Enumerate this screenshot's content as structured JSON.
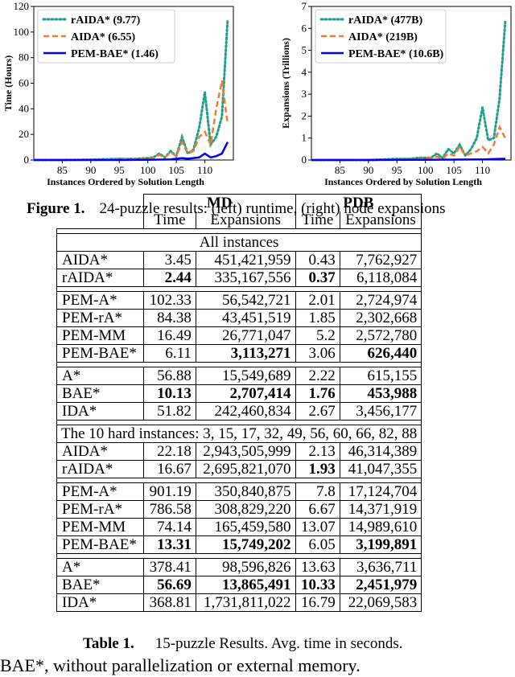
{
  "figure": {
    "label": "Figure 1.",
    "caption": "24-puzzle results: (left) runtime, (right) node expansions"
  },
  "chart_data": [
    {
      "type": "line",
      "title": "",
      "xlabel": "Instances Ordered by Solution Length",
      "ylabel": "Time (Hours)",
      "xlim": [
        80,
        115
      ],
      "ylim": [
        0,
        120
      ],
      "xticks": [
        "85",
        "90",
        "95",
        "100",
        "105",
        "110"
      ],
      "yticks": [
        "0",
        "20",
        "40",
        "60",
        "80",
        "100",
        "120"
      ],
      "legend_position": "top-left",
      "series": [
        {
          "name": "rAIDA* (9.77)",
          "style": "dotted",
          "color": "#1f9e89",
          "x": [
            80,
            85,
            90,
            94,
            95,
            96,
            98,
            100,
            101,
            102,
            103,
            104,
            105,
            106,
            107,
            108,
            109,
            110,
            111,
            112,
            113,
            114
          ],
          "y": [
            0,
            0,
            0.3,
            0.8,
            1,
            0.8,
            1,
            1.5,
            2,
            5,
            2,
            7,
            3,
            18,
            5,
            8,
            25,
            53,
            12,
            18,
            34,
            110
          ]
        },
        {
          "name": "AIDA* (6.55)",
          "style": "dashed",
          "color": "#f07d2e",
          "x": [
            80,
            85,
            90,
            95,
            98,
            100,
            101,
            102,
            103,
            104,
            105,
            106,
            107,
            108,
            109,
            110,
            111,
            112,
            113,
            114
          ],
          "y": [
            0,
            0,
            0.2,
            0.6,
            0.8,
            1,
            1.5,
            4,
            2,
            6,
            3,
            14,
            5,
            7,
            18,
            22,
            12,
            40,
            62,
            28
          ]
        },
        {
          "name": "PEM-BAE* (1.46)",
          "style": "solid",
          "color": "#0000ee",
          "x": [
            80,
            85,
            90,
            95,
            100,
            104,
            105,
            106,
            107,
            108,
            109,
            110,
            111,
            112,
            113,
            114
          ],
          "y": [
            0,
            0,
            0,
            0,
            0.2,
            0.5,
            1,
            1.5,
            1,
            1.5,
            2,
            5,
            2,
            3,
            5,
            14
          ]
        }
      ]
    },
    {
      "type": "line",
      "title": "",
      "xlabel": "Instances Ordered by Solution Length",
      "ylabel": "Expansions (Trillions)",
      "xlim": [
        80,
        115
      ],
      "ylim": [
        0,
        7
      ],
      "xticks": [
        "85",
        "90",
        "95",
        "100",
        "105",
        "110"
      ],
      "yticks": [
        "0",
        "1",
        "2",
        "3",
        "4",
        "5",
        "6",
        "7"
      ],
      "legend_position": "top-left",
      "series": [
        {
          "name": "rAIDA* (477B)",
          "style": "dotted",
          "color": "#1f9e89",
          "x": [
            80,
            85,
            90,
            95,
            97,
            99,
            101,
            102,
            103,
            104,
            105,
            106,
            107,
            108,
            109,
            110,
            111,
            112,
            113,
            114
          ],
          "y": [
            0,
            0,
            0,
            0.05,
            0.05,
            0.1,
            0.1,
            0.3,
            0.1,
            0.5,
            0.3,
            0.7,
            0.2,
            0.5,
            1,
            2.4,
            0.9,
            1,
            2.8,
            6.3
          ]
        },
        {
          "name": "AIDA* (219B)",
          "style": "dashed",
          "color": "#f07d2e",
          "x": [
            80,
            85,
            90,
            95,
            100,
            102,
            103,
            104,
            105,
            106,
            107,
            108,
            109,
            110,
            111,
            112,
            113,
            114
          ],
          "y": [
            0,
            0,
            0,
            0.02,
            0.05,
            0.15,
            0.05,
            0.3,
            0.2,
            0.6,
            0.2,
            0.3,
            0.4,
            0.6,
            0.3,
            0.7,
            1.5,
            1
          ]
        },
        {
          "name": "PEM-BAE* (10.6B)",
          "style": "solid",
          "color": "#0000ee",
          "x": [
            80,
            90,
            100,
            105,
            110,
            114
          ],
          "y": [
            0,
            0,
            0.01,
            0.02,
            0.03,
            0.06
          ]
        }
      ]
    }
  ],
  "table": {
    "group_headers": [
      "MD",
      "PDB"
    ],
    "col_headers": [
      "Time",
      "Expansions",
      "Time",
      "Expansions"
    ],
    "section1_title": "All instances",
    "section2_title": "The 10 hard instances: 3, 15, 17, 32, 49, 56, 60, 66, 82, 88",
    "section1": [
      [
        {
          "name": "AIDA*",
          "v": [
            "3.45",
            "451,421,959",
            "0.43",
            "7,762,927"
          ],
          "bold": []
        },
        {
          "name": "rAIDA*",
          "v": [
            "2.44",
            "335,167,556",
            "0.37",
            "6,118,084"
          ],
          "bold": [
            0,
            2
          ]
        }
      ],
      [
        {
          "name": "PEM-A*",
          "v": [
            "102.33",
            "56,542,721",
            "2.01",
            "2,724,974"
          ],
          "bold": []
        },
        {
          "name": "PEM-rA*",
          "v": [
            "84.38",
            "43,451,519",
            "1.85",
            "2,302,668"
          ],
          "bold": []
        },
        {
          "name": "PEM-MM",
          "v": [
            "16.49",
            "26,771,047",
            "5.2",
            "2,572,780"
          ],
          "bold": []
        },
        {
          "name": "PEM-BAE*",
          "v": [
            "6.11",
            "3,113,271",
            "3.06",
            "626,440"
          ],
          "bold": [
            1,
            3
          ]
        }
      ],
      [
        {
          "name": "A*",
          "v": [
            "56.88",
            "15,549,689",
            "2.22",
            "615,155"
          ],
          "bold": []
        },
        {
          "name": "BAE*",
          "v": [
            "10.13",
            "2,707,414",
            "1.76",
            "453,988"
          ],
          "bold": [
            0,
            1,
            2,
            3
          ]
        },
        {
          "name": "IDA*",
          "v": [
            "51.82",
            "242,460,834",
            "2.67",
            "3,456,177"
          ],
          "bold": []
        }
      ]
    ],
    "section2": [
      [
        {
          "name": "AIDA*",
          "v": [
            "22.18",
            "2,943,505,999",
            "2.13",
            "46,314,389"
          ],
          "bold": []
        },
        {
          "name": "rAIDA*",
          "v": [
            "16.67",
            "2,695,821,070",
            "1.93",
            "41,047,355"
          ],
          "bold": [
            2
          ]
        }
      ],
      [
        {
          "name": "PEM-A*",
          "v": [
            "901.19",
            "350,840,875",
            "7.8",
            "17,124,704"
          ],
          "bold": []
        },
        {
          "name": "PEM-rA*",
          "v": [
            "786.58",
            "308,829,220",
            "6.67",
            "14,371,919"
          ],
          "bold": []
        },
        {
          "name": "PEM-MM",
          "v": [
            "74.14",
            "165,459,580",
            "13.07",
            "14,989,610"
          ],
          "bold": []
        },
        {
          "name": "PEM-BAE*",
          "v": [
            "13.31",
            "15,749,202",
            "6.05",
            "3,199,891"
          ],
          "bold": [
            0,
            1,
            3
          ]
        }
      ],
      [
        {
          "name": "A*",
          "v": [
            "378.41",
            "98,596,826",
            "13.63",
            "3,636,711"
          ],
          "bold": []
        },
        {
          "name": "BAE*",
          "v": [
            "56.69",
            "13,865,491",
            "10.33",
            "2,451,979"
          ],
          "bold": [
            0,
            1,
            2,
            3
          ]
        },
        {
          "name": "IDA*",
          "v": [
            "368.81",
            "1,731,811,022",
            "16.79",
            "22,069,583"
          ],
          "bold": []
        }
      ]
    ],
    "label": "Table 1.",
    "caption": "15-puzzle Results. Avg. time in seconds."
  },
  "body_text": "BAE*, without parallelization or external memory."
}
